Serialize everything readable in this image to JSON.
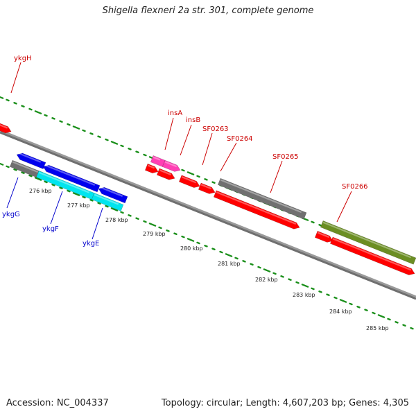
{
  "title": "Shigella flexneri 2a str. 301, complete genome",
  "footer": {
    "accession": "Accession: NC_004337",
    "summary": "Topology: circular; Length: 4,607,203 bp; Genes: 4,305"
  },
  "colors": {
    "backbone": "#808080",
    "tick_dots": "#1a8f1a",
    "forward_label": "#cc0000",
    "reverse_label": "#0000cc",
    "red_gene": "#ff0000",
    "magenta_gene": "#ff3fb4",
    "blue_gene": "#0000ee",
    "cyan_gene": "#00e5ee",
    "gray_gene": "#707070",
    "olive_gene": "#6b8e23"
  },
  "scale_labels": [
    "276 kbp",
    "277 kbp",
    "278 kbp",
    "279 kbp",
    "280 kbp",
    "281 kbp",
    "282 kbp",
    "283 kbp",
    "284 kbp",
    "285 kbp"
  ],
  "gene_labels_forward": [
    "ykgH",
    "insA",
    "insB",
    "SF0263",
    "SF0264",
    "SF0265",
    "SF0266"
  ],
  "gene_labels_reverse": [
    "ykgG",
    "ykgF",
    "ykgE"
  ]
}
